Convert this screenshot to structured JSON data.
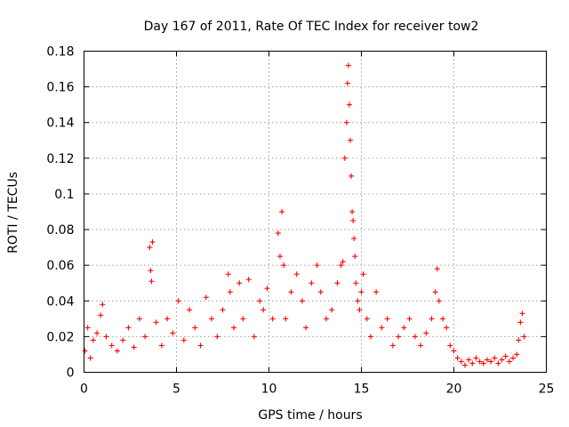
{
  "chart_data": {
    "type": "scatter",
    "title": "Day 167 of 2011, Rate Of TEC Index for receiver tow2",
    "xlabel": "GPS time / hours",
    "ylabel": "ROTI / TECUs",
    "xlim": [
      0,
      25
    ],
    "ylim": [
      0,
      0.18
    ],
    "xticks": [
      0,
      5,
      10,
      15,
      20,
      25
    ],
    "yticks": [
      0,
      0.02,
      0.04,
      0.06,
      0.08,
      0.1,
      0.12,
      0.14,
      0.16,
      0.18
    ],
    "xtick_labels": [
      "0",
      "5",
      "10",
      "15",
      "20",
      "25"
    ],
    "ytick_labels": [
      "0",
      "0.02",
      "0.04",
      "0.06",
      "0.08",
      "0.1",
      "0.12",
      "0.14",
      "0.16",
      "0.18"
    ],
    "grid": true,
    "marker": "+",
    "marker_color": "#ff0000",
    "series": [
      {
        "name": "ROTI",
        "x": [
          0.05,
          0.2,
          0.35,
          0.5,
          0.7,
          0.9,
          1.0,
          1.2,
          1.5,
          1.8,
          2.1,
          2.4,
          2.7,
          3.0,
          3.3,
          3.55,
          3.6,
          3.65,
          3.7,
          3.9,
          4.2,
          4.5,
          4.8,
          5.1,
          5.4,
          5.7,
          6.0,
          6.3,
          6.6,
          6.9,
          7.2,
          7.5,
          7.8,
          7.9,
          8.1,
          8.4,
          8.6,
          8.9,
          9.2,
          9.5,
          9.7,
          9.9,
          10.2,
          10.5,
          10.6,
          10.7,
          10.8,
          10.9,
          11.2,
          11.5,
          11.8,
          12.0,
          12.3,
          12.6,
          12.8,
          13.1,
          13.4,
          13.7,
          13.9,
          14.0,
          14.1,
          14.2,
          14.25,
          14.3,
          14.35,
          14.4,
          14.45,
          14.5,
          14.55,
          14.6,
          14.65,
          14.7,
          14.8,
          14.9,
          15.0,
          15.1,
          15.3,
          15.5,
          15.8,
          16.1,
          16.4,
          16.7,
          17.0,
          17.3,
          17.6,
          17.9,
          18.2,
          18.5,
          18.8,
          19.0,
          19.1,
          19.2,
          19.4,
          19.6,
          19.8,
          20.0,
          20.2,
          20.4,
          20.6,
          20.8,
          21.0,
          21.2,
          21.4,
          21.6,
          21.8,
          22.0,
          22.2,
          22.4,
          22.6,
          22.8,
          23.0,
          23.2,
          23.4,
          23.5,
          23.6,
          23.7,
          23.8
        ],
        "y": [
          0.012,
          0.025,
          0.008,
          0.018,
          0.022,
          0.032,
          0.038,
          0.02,
          0.015,
          0.012,
          0.018,
          0.025,
          0.014,
          0.03,
          0.02,
          0.07,
          0.057,
          0.051,
          0.073,
          0.028,
          0.015,
          0.03,
          0.022,
          0.04,
          0.018,
          0.035,
          0.025,
          0.015,
          0.042,
          0.03,
          0.02,
          0.035,
          0.055,
          0.045,
          0.025,
          0.05,
          0.03,
          0.052,
          0.02,
          0.04,
          0.035,
          0.047,
          0.03,
          0.078,
          0.065,
          0.09,
          0.06,
          0.03,
          0.045,
          0.055,
          0.04,
          0.025,
          0.05,
          0.06,
          0.045,
          0.03,
          0.035,
          0.05,
          0.06,
          0.062,
          0.12,
          0.14,
          0.162,
          0.172,
          0.15,
          0.13,
          0.11,
          0.09,
          0.085,
          0.075,
          0.065,
          0.05,
          0.04,
          0.035,
          0.045,
          0.055,
          0.03,
          0.02,
          0.045,
          0.025,
          0.03,
          0.015,
          0.02,
          0.025,
          0.03,
          0.02,
          0.015,
          0.022,
          0.03,
          0.045,
          0.058,
          0.04,
          0.03,
          0.025,
          0.015,
          0.012,
          0.008,
          0.006,
          0.004,
          0.007,
          0.005,
          0.008,
          0.006,
          0.005,
          0.007,
          0.006,
          0.008,
          0.005,
          0.007,
          0.009,
          0.006,
          0.008,
          0.01,
          0.018,
          0.028,
          0.033,
          0.02
        ]
      }
    ]
  }
}
